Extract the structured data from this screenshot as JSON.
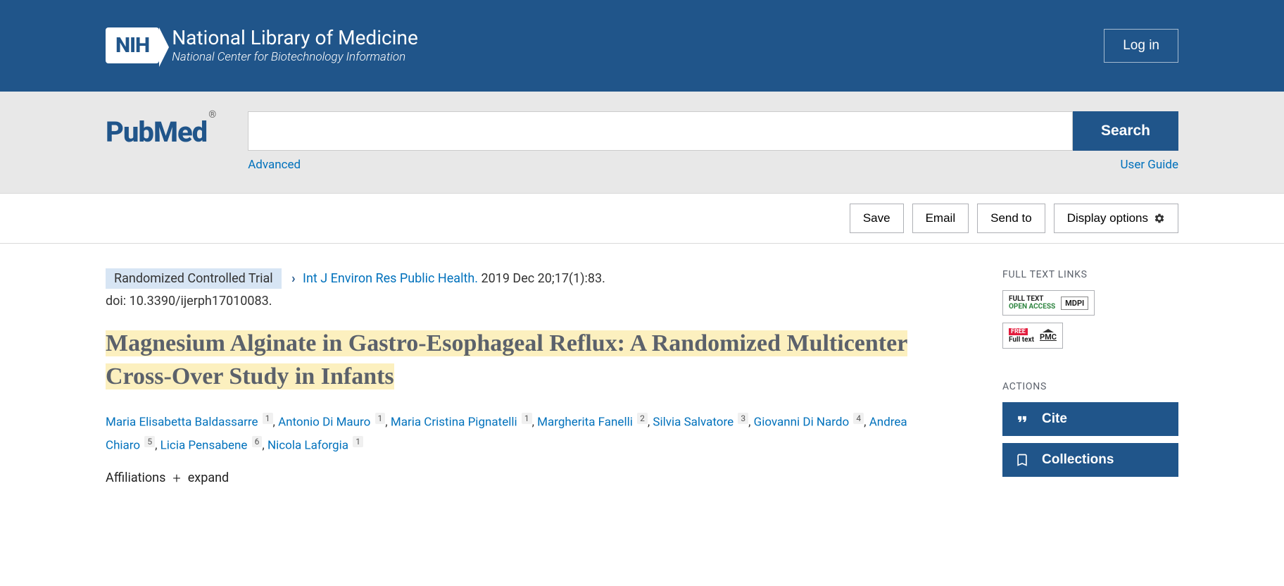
{
  "header": {
    "nih_badge": "NIH",
    "title": "National Library of Medicine",
    "subtitle": "National Center for Biotechnology Information",
    "login": "Log in"
  },
  "search": {
    "logo_pub": "Pub",
    "logo_med": "Med",
    "logo_reg": "®",
    "input_value": "",
    "button": "Search",
    "advanced": "Advanced",
    "user_guide": "User Guide"
  },
  "actionbar": {
    "save": "Save",
    "email": "Email",
    "send_to": "Send to",
    "display_options": "Display options"
  },
  "article": {
    "pub_type": "Randomized Controlled Trial",
    "journal": "Int J Environ Res Public Health.",
    "pub_date": "2019 Dec 20;17(1):83.",
    "doi": "doi: 10.3390/ijerph17010083.",
    "title": "Magnesium Alginate in Gastro-Esophageal Reflux: A Randomized Multicenter Cross-Over Study in Infants",
    "authors": [
      {
        "name": "Maria Elisabetta Baldassarre",
        "aff": "1"
      },
      {
        "name": "Antonio Di Mauro",
        "aff": "1"
      },
      {
        "name": "Maria Cristina Pignatelli",
        "aff": "1"
      },
      {
        "name": "Margherita Fanelli",
        "aff": "2"
      },
      {
        "name": "Silvia Salvatore",
        "aff": "3"
      },
      {
        "name": "Giovanni Di Nardo",
        "aff": "4"
      },
      {
        "name": "Andrea Chiaro",
        "aff": "5"
      },
      {
        "name": "Licia Pensabene",
        "aff": "6"
      },
      {
        "name": "Nicola Laforgia",
        "aff": "1"
      }
    ],
    "affiliations_label": "Affiliations",
    "expand": "expand"
  },
  "sidebar": {
    "full_text_links": "FULL TEXT LINKS",
    "mdpi": {
      "line1": "FULL TEXT",
      "line2": "OPEN ACCESS",
      "pub": "MDPI"
    },
    "pmc": {
      "badge": "FREE",
      "line": "Full text",
      "pub": "PMC"
    },
    "actions_heading": "ACTIONS",
    "cite": "Cite",
    "collections": "Collections"
  }
}
